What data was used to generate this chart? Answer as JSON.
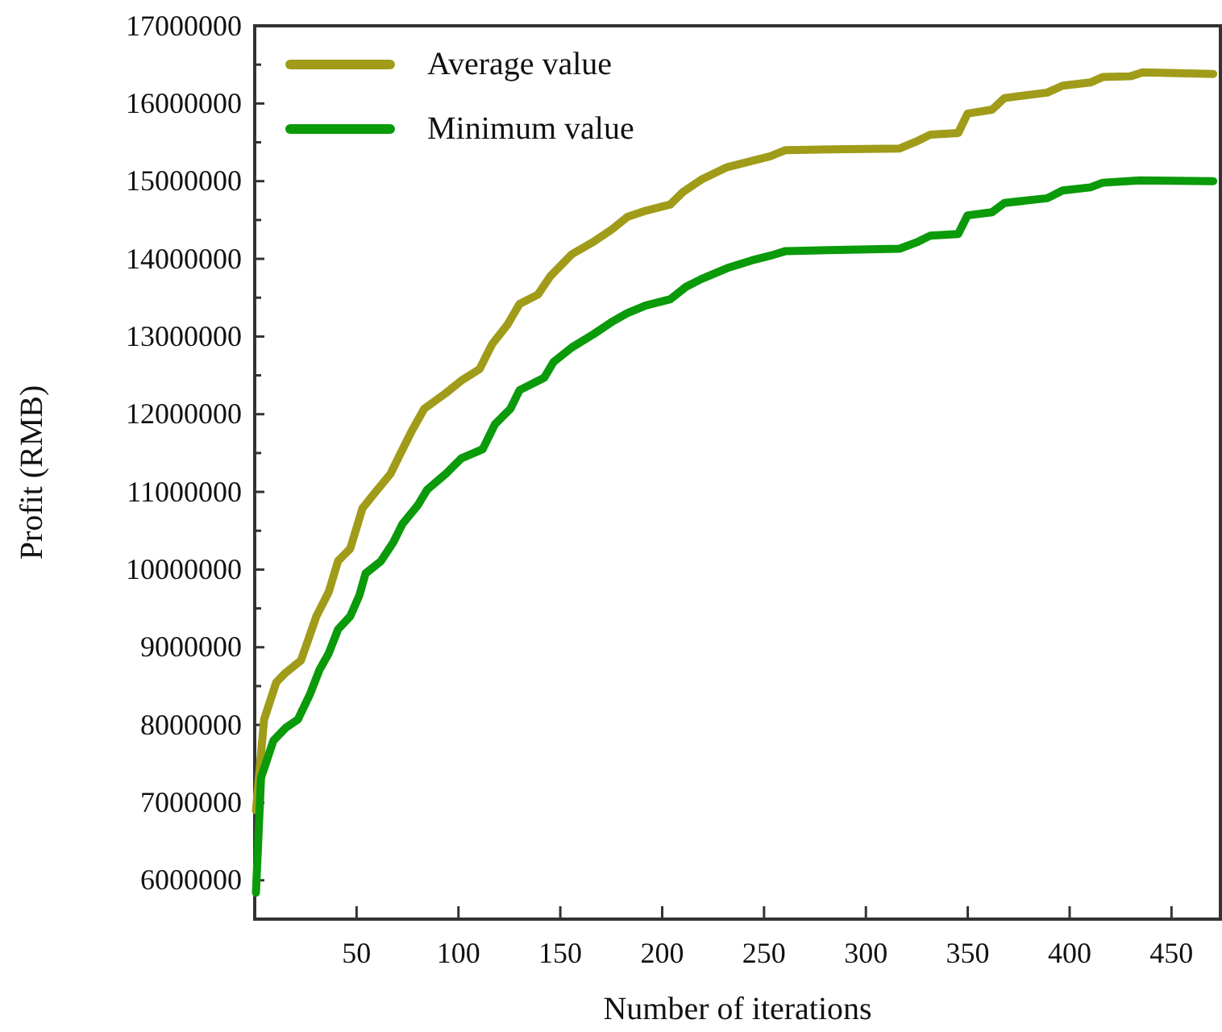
{
  "chart_data": {
    "type": "line",
    "xlabel": "Number of iterations",
    "ylabel": "Profit (RMB)",
    "xlim": [
      0,
      474
    ],
    "xticks": [
      50,
      100,
      150,
      200,
      250,
      300,
      350,
      400,
      450
    ],
    "ylim": [
      5500000,
      17000000
    ],
    "yticks": [
      6000000,
      {
        "value": 6500000,
        "label": null
      },
      7000000,
      {
        "value": 7500000,
        "label": null
      },
      8000000,
      {
        "value": 8500000,
        "label": null
      },
      9000000,
      {
        "value": 9500000,
        "label": null
      },
      10000000,
      {
        "value": 10500000,
        "label": null
      },
      11000000,
      {
        "value": 11500000,
        "label": null
      },
      12000000,
      {
        "value": 12500000,
        "label": null
      },
      13000000,
      {
        "value": 13500000,
        "label": null
      },
      14000000,
      {
        "value": 14500000,
        "label": null
      },
      15000000,
      {
        "value": 15500000,
        "label": null
      },
      16000000,
      {
        "value": 16500000,
        "label": null
      },
      17000000
    ],
    "grid": false,
    "legend": "top left",
    "line_style": "solid",
    "marker": "none",
    "series": [
      {
        "name": "Average value",
        "color": "#a09c1a",
        "x": [
          0.6,
          4.6,
          10.6,
          15.1,
          22.7,
          30.3,
          36.3,
          40.9,
          46.9,
          52.9,
          59,
          66.6,
          71.1,
          77.2,
          83.2,
          93.7,
          101.3,
          110.4,
          116.5,
          124,
          130,
          139,
          145.2,
          155.7,
          166.3,
          175.4,
          182.9,
          192,
          204,
          210.2,
          219.2,
          231.9,
          244,
          253,
          260.6,
          283.2,
          316.5,
          325.6,
          331.7,
          345.3,
          349.9,
          361.9,
          368,
          389,
          396.6,
          410.2,
          416.2,
          429.9,
          435.8,
          470.5
        ],
        "values": [
          6900000,
          8070000,
          8550000,
          8670000,
          8830000,
          9400000,
          9710000,
          10110000,
          10270000,
          10790000,
          10990000,
          11230000,
          11470000,
          11790000,
          12070000,
          12270000,
          12430000,
          12580000,
          12900000,
          13150000,
          13420000,
          13540000,
          13780000,
          14060000,
          14220000,
          14380000,
          14540000,
          14620000,
          14700000,
          14860000,
          15020000,
          15180000,
          15260000,
          15320000,
          15400000,
          15410000,
          15420000,
          15520000,
          15600000,
          15620000,
          15870000,
          15920000,
          16070000,
          16140000,
          16230000,
          16270000,
          16340000,
          16350000,
          16400000,
          16380000
        ]
      },
      {
        "name": "Minimum value",
        "color": "#0a9a0a",
        "x": [
          0.6,
          3.1,
          9.2,
          15.1,
          21.2,
          27.2,
          31.8,
          36.3,
          40.9,
          46.9,
          51.4,
          54.4,
          62,
          68,
          72.6,
          80.1,
          84.7,
          93.7,
          101.3,
          111.9,
          117.9,
          125.5,
          130,
          142.1,
          146.6,
          155.7,
          166.3,
          175.4,
          182.9,
          192,
          204,
          211.7,
          219.2,
          231.9,
          244,
          253,
          260.6,
          316.5,
          325.6,
          331.7,
          345.3,
          349.9,
          361.9,
          368,
          389,
          396.6,
          410.2,
          416.2,
          434.4,
          470.5
        ],
        "values": [
          5840000,
          7320000,
          7800000,
          7960000,
          8070000,
          8400000,
          8710000,
          8920000,
          9230000,
          9400000,
          9670000,
          9950000,
          10110000,
          10350000,
          10590000,
          10830000,
          11030000,
          11230000,
          11430000,
          11550000,
          11870000,
          12070000,
          12310000,
          12470000,
          12670000,
          12860000,
          13030000,
          13190000,
          13300000,
          13400000,
          13480000,
          13640000,
          13740000,
          13880000,
          13980000,
          14040000,
          14100000,
          14130000,
          14220000,
          14300000,
          14320000,
          14560000,
          14600000,
          14720000,
          14780000,
          14880000,
          14920000,
          14980000,
          15010000,
          15000000
        ]
      }
    ]
  }
}
